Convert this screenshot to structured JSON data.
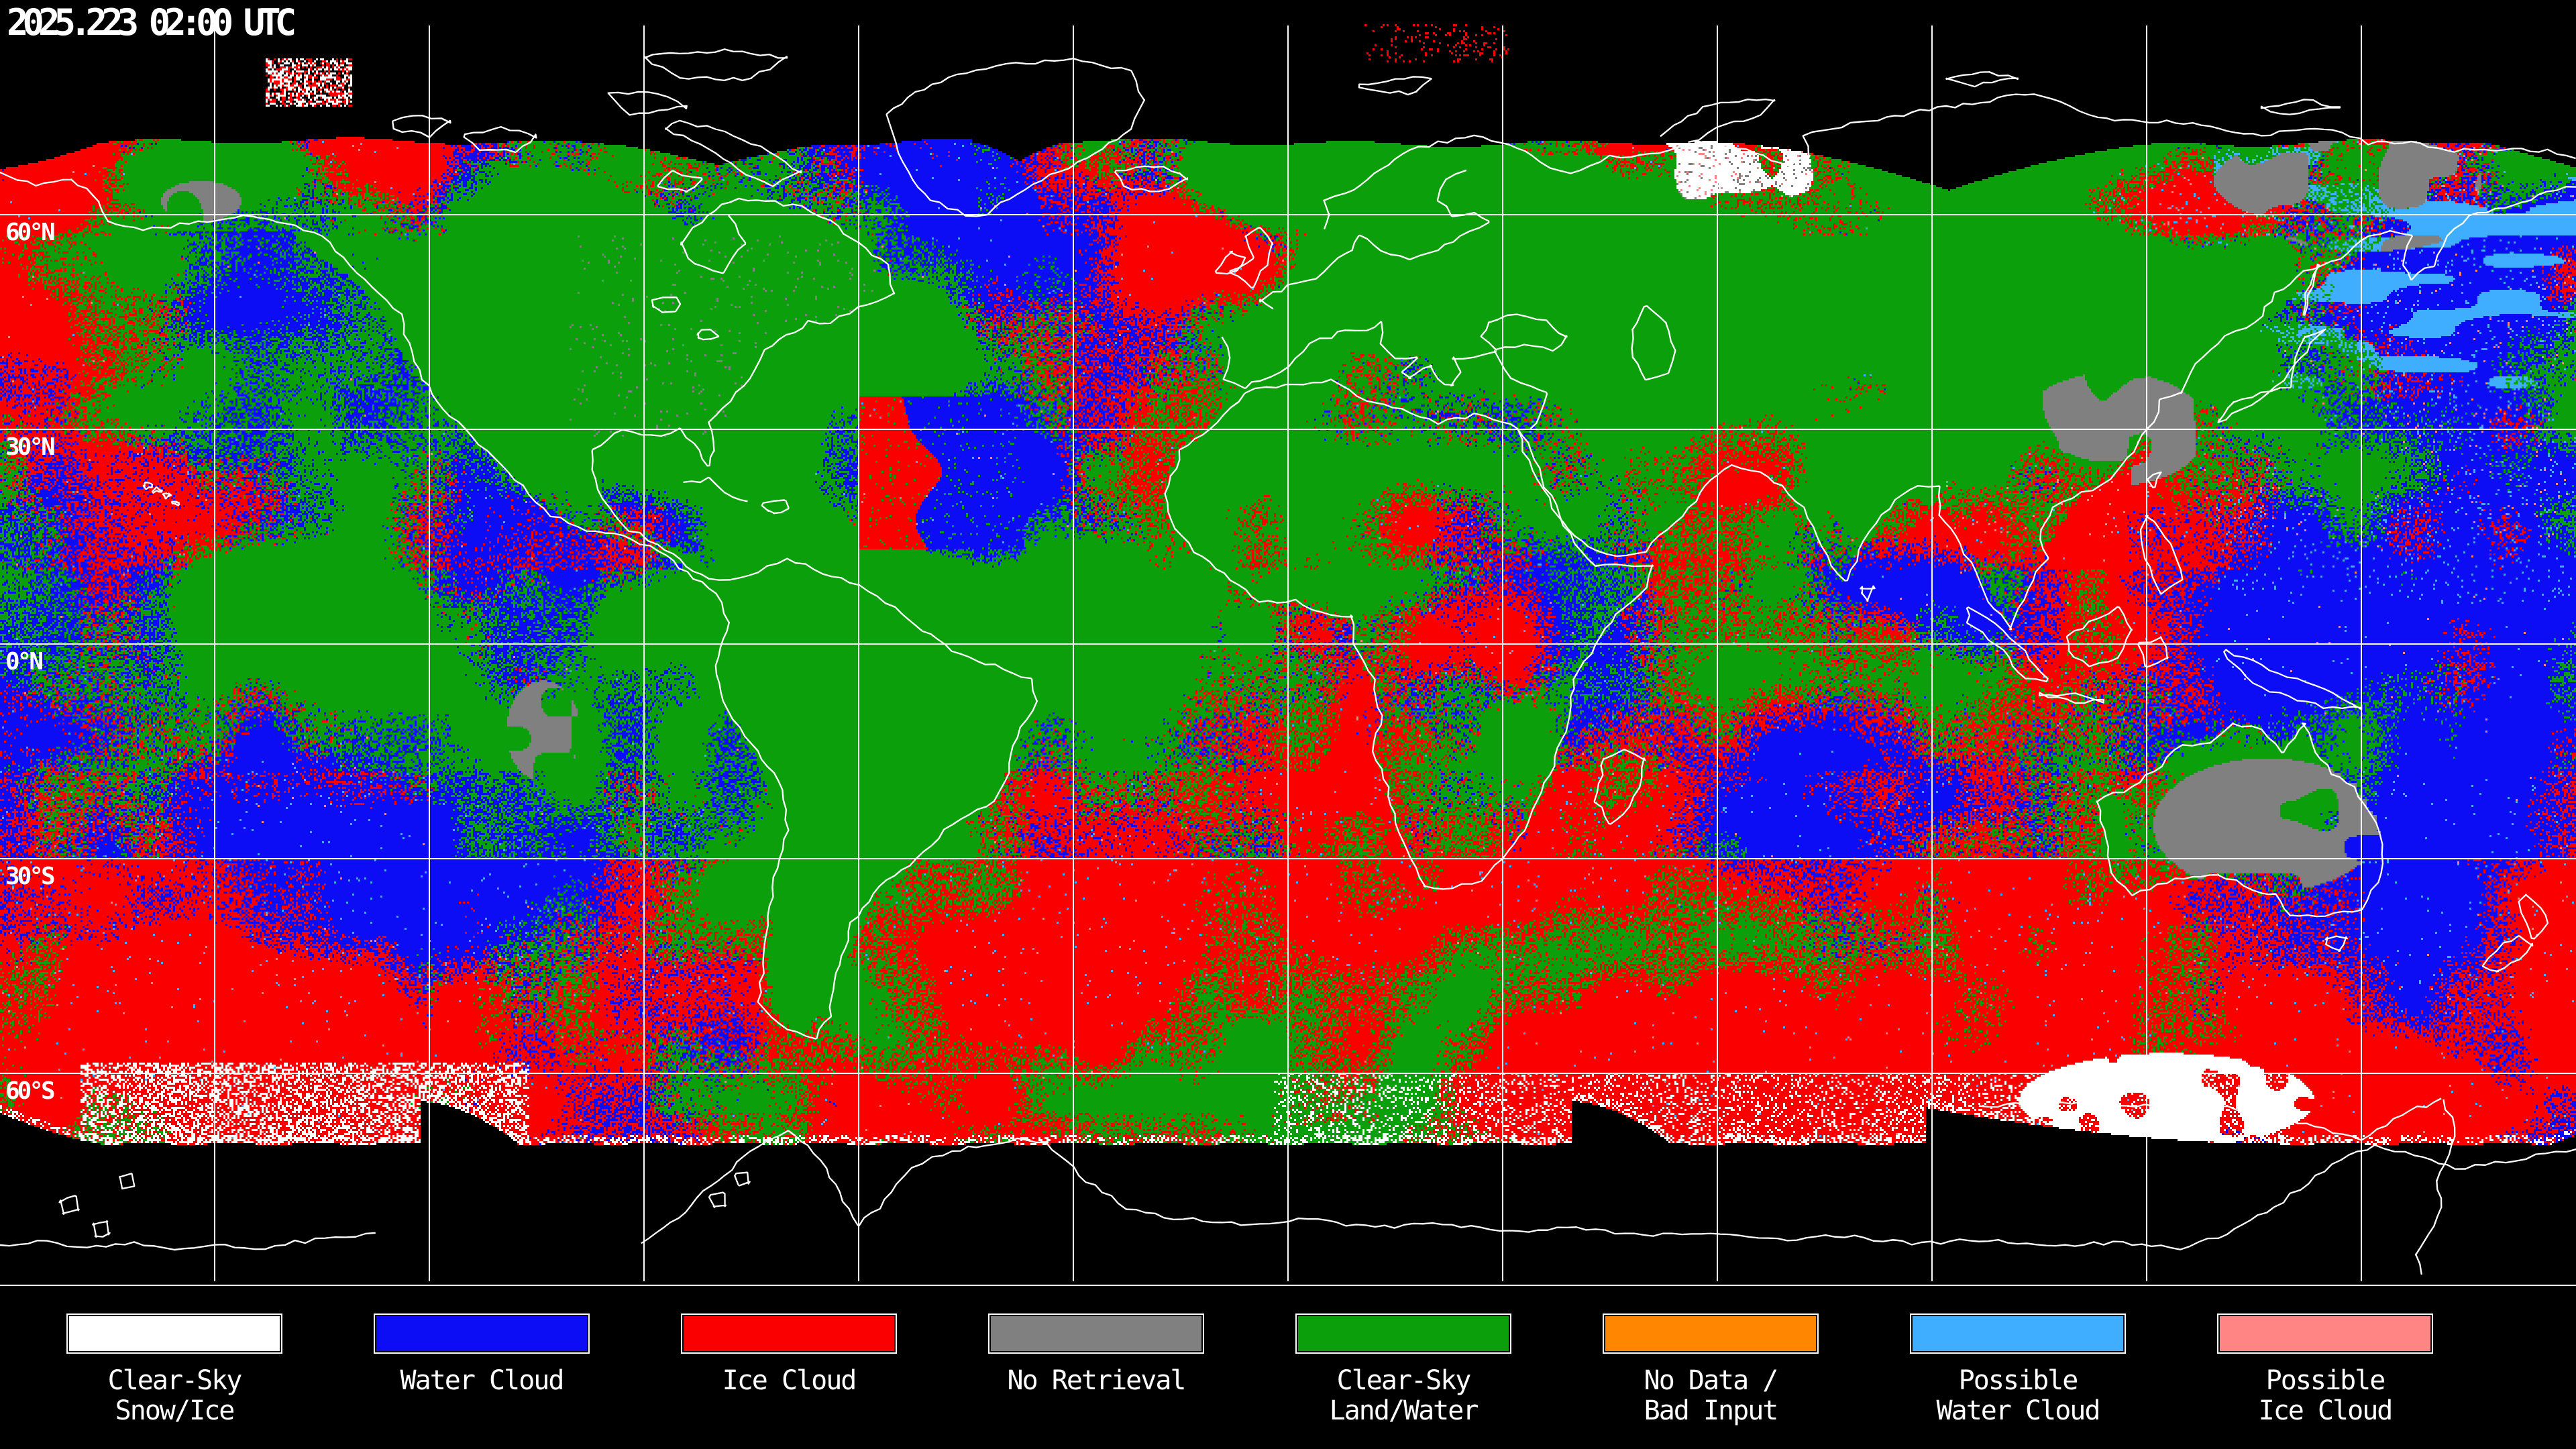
{
  "header": {
    "timestamp": "2025.223 02:00 UTC"
  },
  "map": {
    "projection": "equirectangular",
    "lon_gridline_step_deg": 30,
    "lat_gridlines_deg": [
      60,
      30,
      0,
      -30,
      -60
    ],
    "latitude_labels": [
      {
        "text": "60°N",
        "lat": 60
      },
      {
        "text": "30°N",
        "lat": 30
      },
      {
        "text": "0°N",
        "lat": 0
      },
      {
        "text": "30°S",
        "lat": -30
      },
      {
        "text": "60°S",
        "lat": -60
      }
    ],
    "colors": {
      "background": "#000000",
      "gridline": "#FFFFFF",
      "coastline": "#FFFFFF",
      "classes": {
        "clear_sky_snow_ice": "#FFFFFF",
        "water_cloud": "#0D0DF5",
        "ice_cloud": "#FA0000",
        "no_retrieval": "#808080",
        "clear_sky_land_water": "#0BA00B",
        "no_data_bad_input": "#FF8600",
        "possible_water_cloud": "#3FAEFF",
        "possible_ice_cloud": "#FF8585"
      }
    }
  },
  "legend": {
    "entries": [
      {
        "key": "clear_sky_snow_ice",
        "lines": [
          "Clear-Sky",
          "Snow/Ice"
        ]
      },
      {
        "key": "water_cloud",
        "lines": [
          "Water Cloud"
        ]
      },
      {
        "key": "ice_cloud",
        "lines": [
          "Ice Cloud"
        ]
      },
      {
        "key": "no_retrieval",
        "lines": [
          "No Retrieval"
        ]
      },
      {
        "key": "clear_sky_land_water",
        "lines": [
          "Clear-Sky",
          "Land/Water"
        ]
      },
      {
        "key": "no_data_bad_input",
        "lines": [
          "No Data /",
          "Bad Input"
        ]
      },
      {
        "key": "possible_water_cloud",
        "lines": [
          "Possible",
          "Water Cloud"
        ]
      },
      {
        "key": "possible_ice_cloud",
        "lines": [
          "Possible",
          "Ice Cloud"
        ]
      }
    ]
  }
}
